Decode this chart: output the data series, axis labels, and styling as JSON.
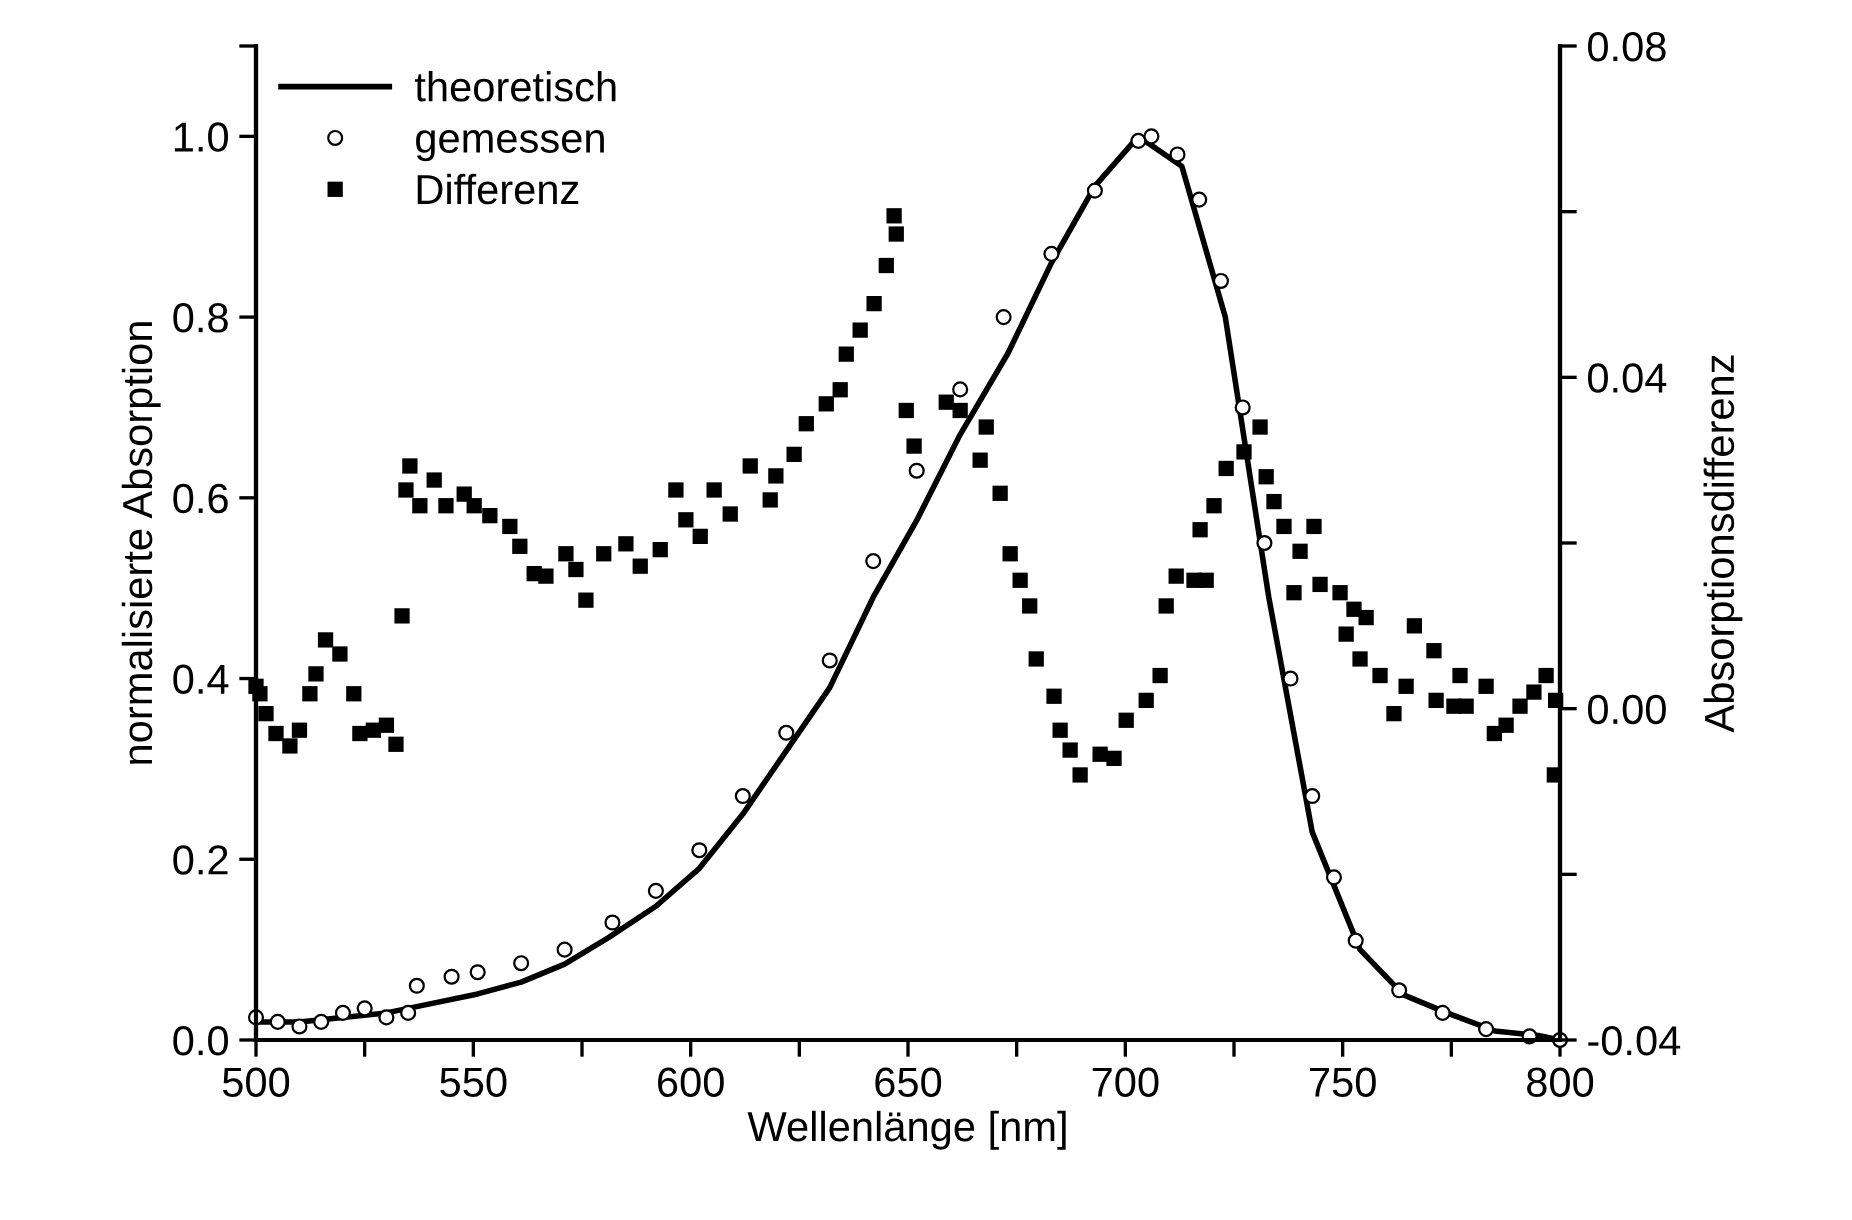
{
  "chart_data": {
    "type": "line",
    "xlabel": "Wellenlänge [nm]",
    "ylabel": "normalisierte Absorption",
    "y2label": "Absorptionsdifferenz",
    "xlim": [
      500,
      800
    ],
    "ylim": [
      0,
      1.1
    ],
    "y2lim": [
      -0.04,
      0.08
    ],
    "xticks": [
      500,
      {
        "value": 525,
        "label": null
      },
      550,
      {
        "value": 575,
        "label": null
      },
      600,
      {
        "value": 625,
        "label": null
      },
      650,
      {
        "value": 675,
        "label": null
      },
      700,
      {
        "value": 725,
        "label": null
      },
      750,
      {
        "value": 775,
        "label": null
      },
      800
    ],
    "yticks": [
      {
        "value": 0,
        "label": "0.0"
      },
      {
        "value": 0.2,
        "label": "0.2"
      },
      {
        "value": 0.4,
        "label": "0.4"
      },
      {
        "value": 0.6,
        "label": "0.6"
      },
      {
        "value": 0.8,
        "label": "0.8"
      },
      {
        "value": 1.0,
        "label": "1.0"
      },
      {
        "value": 1.1,
        "label": null
      }
    ],
    "y2ticks": [
      {
        "value": -0.04,
        "label": "-0.04"
      },
      {
        "value": -0.02,
        "label": null
      },
      {
        "value": 0,
        "label": "0.00"
      },
      {
        "value": 0.02,
        "label": null
      },
      {
        "value": 0.04,
        "label": "0.04"
      },
      {
        "value": 0.06,
        "label": null
      },
      {
        "value": 0.08,
        "label": "0.08"
      }
    ],
    "grid": false,
    "legend": "top left",
    "series": [
      {
        "name": "theoretisch",
        "marker": "none",
        "line_style": "solid",
        "color": "#000000",
        "x": [
          500,
          510,
          520,
          530,
          540,
          551,
          561,
          571,
          581,
          592,
          602,
          612,
          622,
          632,
          642,
          652,
          662,
          673,
          683,
          693,
          703,
          713,
          723,
          733,
          743,
          754,
          764,
          774,
          785,
          795,
          800
        ],
        "values": [
          0.02,
          0.02,
          0.025,
          0.03,
          0.04,
          0.051,
          0.064,
          0.084,
          0.113,
          0.148,
          0.19,
          0.25,
          0.32,
          0.39,
          0.49,
          0.575,
          0.67,
          0.76,
          0.86,
          0.945,
          1.0,
          0.967,
          0.8,
          0.49,
          0.23,
          0.1,
          0.05,
          0.03,
          0.01,
          0.005,
          0.0
        ]
      },
      {
        "name": "gemessen",
        "type": "scatter",
        "marker": "circle",
        "color": "#000000",
        "x": [
          500,
          505,
          510,
          515,
          520,
          525,
          530,
          535,
          537,
          545,
          551,
          561,
          571,
          582,
          592,
          602,
          612,
          622,
          632,
          642,
          652,
          662,
          672,
          683,
          693,
          703,
          706,
          712,
          717,
          722,
          727,
          732,
          738,
          743,
          748,
          753,
          763,
          773,
          783,
          793,
          800
        ],
        "values": [
          0.025,
          0.02,
          0.015,
          0.02,
          0.03,
          0.035,
          0.025,
          0.03,
          0.06,
          0.07,
          0.075,
          0.085,
          0.1,
          0.13,
          0.165,
          0.21,
          0.27,
          0.34,
          0.42,
          0.53,
          0.63,
          0.72,
          0.8,
          0.87,
          0.94,
          0.995,
          1.0,
          0.98,
          0.93,
          0.84,
          0.7,
          0.55,
          0.4,
          0.27,
          0.18,
          0.11,
          0.055,
          0.03,
          0.012,
          0.004,
          0.0
        ]
      },
      {
        "name": "Differenz",
        "type": "scatter",
        "marker": "square",
        "axis": "y2",
        "color": "#000000",
        "x": [
          500,
          500.9,
          502.3,
          504.6,
          507.8,
          510,
          512.4,
          513.8,
          516,
          519.3,
          522.5,
          523.9,
          527,
          530,
          532.2,
          533.6,
          535.4,
          534.5,
          537.7,
          541,
          543.7,
          547.9,
          550.2,
          553.8,
          558.4,
          560.7,
          564,
          566.7,
          571.3,
          573.6,
          575.9,
          580,
          585.1,
          588.4,
          593,
          596.6,
          598.9,
          602.2,
          605.4,
          609.1,
          613.7,
          618.3,
          619.6,
          623.8,
          626.6,
          631.2,
          634.4,
          635.8,
          639,
          642.2,
          645,
          647.3,
          646.8,
          649.6,
          651.4,
          658.8,
          662,
          668,
          666.6,
          671.2,
          673.5,
          675.8,
          678,
          679.5,
          683.6,
          685,
          687.3,
          689.6,
          694.2,
          697.4,
          700.2,
          704.8,
          708,
          709.4,
          711.7,
          715.8,
          718.6,
          717.2,
          720.4,
          723.2,
          727.3,
          731,
          732.4,
          734.2,
          736.5,
          740.2,
          743.4,
          738.8,
          744.8,
          749.4,
          752.6,
          750.8,
          755.4,
          754,
          758.6,
          761.8,
          766.5,
          764.6,
          771,
          771.5,
          775.6,
          778.4,
          777,
          783,
          784.9,
          787.6,
          790.8,
          794,
          796.8,
          799,
          798.7
        ],
        "values": [
          0.0027,
          0.0018,
          -0.0006,
          -0.003,
          -0.0045,
          -0.0026,
          0.0018,
          0.0042,
          0.0083,
          0.0066,
          0.0018,
          -0.003,
          -0.0026,
          -0.002,
          -0.0043,
          0.0112,
          0.0293,
          0.0264,
          0.0245,
          0.0276,
          0.0245,
          0.0259,
          0.0245,
          0.0233,
          0.022,
          0.0196,
          0.0163,
          0.016,
          0.0187,
          0.0168,
          0.0131,
          0.0187,
          0.0199,
          0.0172,
          0.0192,
          0.0264,
          0.0228,
          0.0208,
          0.0264,
          0.0235,
          0.0293,
          0.0252,
          0.0281,
          0.0307,
          0.0344,
          0.0368,
          0.0385,
          0.0428,
          0.0457,
          0.0489,
          0.0535,
          0.0573,
          0.0595,
          0.036,
          0.0317,
          0.037,
          0.036,
          0.034,
          0.03,
          0.026,
          0.0187,
          0.0155,
          0.0124,
          0.006,
          0.0015,
          -0.0026,
          -0.005,
          -0.008,
          -0.0055,
          -0.006,
          -0.0014,
          0.001,
          0.004,
          0.0124,
          0.016,
          0.0155,
          0.0155,
          0.0216,
          0.0245,
          0.029,
          0.031,
          0.034,
          0.028,
          0.025,
          0.022,
          0.019,
          0.022,
          0.014,
          0.015,
          0.014,
          0.012,
          0.009,
          0.011,
          0.006,
          0.004,
          -0.0006,
          0.01,
          0.0027,
          0.007,
          0.001,
          0.0003,
          0.0003,
          0.004,
          0.0027,
          -0.003,
          -0.002,
          0.0003,
          0.002,
          0.004,
          0.001,
          -0.008
        ]
      }
    ]
  }
}
